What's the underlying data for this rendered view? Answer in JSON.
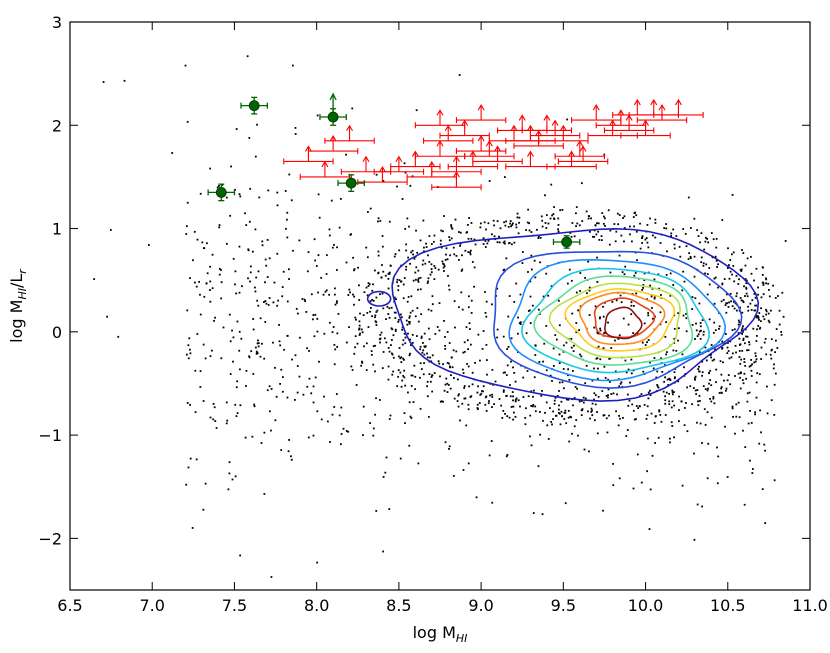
{
  "chart_data": {
    "type": "scatter",
    "xlabel": "log M",
    "xlabel_sub": "HI",
    "ylabel": "log M",
    "ylabel_sub": "HI",
    "ylabel_tail": "/L",
    "ylabel_tail_sub": "r",
    "xlim": [
      6.5,
      11.0
    ],
    "ylim": [
      -2.5,
      3.0
    ],
    "xticks": [
      "6.5",
      "7.0",
      "7.5",
      "8.0",
      "8.5",
      "9.0",
      "9.5",
      "10.0",
      "10.5",
      "11.0"
    ],
    "yticks": [
      "−2",
      "−1",
      "0",
      "1",
      "2",
      "3"
    ],
    "grid": false,
    "colors": {
      "background_points": "#000000",
      "detections": "#006400",
      "lower_limits": "#ff0000",
      "contours": [
        "#1f1fbf",
        "#2a4fe0",
        "#1f8fff",
        "#19c8e6",
        "#5fdc9a",
        "#b8e04a",
        "#ffcc22",
        "#ff8a1e",
        "#e8401a",
        "#8b1010"
      ]
    },
    "series": [
      {
        "kind": "detections_with_errorbars",
        "points": [
          {
            "x": 7.42,
            "y": 1.35,
            "xerr": 0.08,
            "yerr": 0.08
          },
          {
            "x": 7.62,
            "y": 2.19,
            "xerr": 0.08,
            "yerr": 0.08
          },
          {
            "x": 8.1,
            "y": 2.08,
            "xerr": 0.08,
            "yerr": 0.08,
            "upper_arrow": true
          },
          {
            "x": 8.21,
            "y": 1.44,
            "xerr": 0.08,
            "yerr": 0.08
          },
          {
            "x": 9.52,
            "y": 0.87,
            "xerr": 0.08,
            "yerr": 0.06
          }
        ]
      },
      {
        "kind": "lower_limits",
        "points": [
          [
            7.95,
            1.65
          ],
          [
            8.05,
            1.5
          ],
          [
            8.1,
            1.75
          ],
          [
            8.2,
            1.85
          ],
          [
            8.3,
            1.55
          ],
          [
            8.4,
            1.45
          ],
          [
            8.5,
            1.55
          ],
          [
            8.6,
            1.6
          ],
          [
            8.7,
            1.5
          ],
          [
            8.75,
            1.7
          ],
          [
            8.75,
            2.0
          ],
          [
            8.8,
            1.85
          ],
          [
            8.85,
            1.4
          ],
          [
            8.85,
            1.55
          ],
          [
            8.9,
            1.9
          ],
          [
            8.95,
            1.6
          ],
          [
            9.0,
            1.75
          ],
          [
            9.0,
            2.05
          ],
          [
            9.05,
            1.7
          ],
          [
            9.1,
            1.65
          ],
          [
            9.2,
            1.85
          ],
          [
            9.25,
            1.95
          ],
          [
            9.3,
            1.85
          ],
          [
            9.35,
            1.8
          ],
          [
            9.4,
            1.95
          ],
          [
            9.45,
            1.9
          ],
          [
            9.5,
            1.85
          ],
          [
            9.55,
            1.6
          ],
          [
            9.6,
            1.7
          ],
          [
            9.62,
            1.65
          ],
          [
            9.7,
            2.05
          ],
          [
            9.8,
            1.9
          ],
          [
            9.85,
            2.0
          ],
          [
            9.9,
            1.95
          ],
          [
            9.95,
            2.1
          ],
          [
            10.0,
            1.9
          ],
          [
            10.05,
            2.1
          ],
          [
            10.1,
            2.05
          ],
          [
            10.2,
            2.1
          ],
          [
            9.3,
            1.6
          ]
        ]
      }
    ],
    "contour_levels": [
      {
        "cx": 9.62,
        "cy": 0.2,
        "rx": 1.02,
        "ry": 0.82
      },
      {
        "cx": 9.78,
        "cy": 0.15,
        "rx": 0.75,
        "ry": 0.66
      },
      {
        "cx": 9.8,
        "cy": 0.12,
        "rx": 0.64,
        "ry": 0.58
      },
      {
        "cx": 9.82,
        "cy": 0.1,
        "rx": 0.55,
        "ry": 0.5
      },
      {
        "cx": 9.83,
        "cy": 0.1,
        "rx": 0.47,
        "ry": 0.43
      },
      {
        "cx": 9.84,
        "cy": 0.11,
        "rx": 0.39,
        "ry": 0.36
      },
      {
        "cx": 9.85,
        "cy": 0.12,
        "rx": 0.32,
        "ry": 0.3
      },
      {
        "cx": 9.85,
        "cy": 0.13,
        "rx": 0.25,
        "ry": 0.25
      },
      {
        "cx": 9.86,
        "cy": 0.13,
        "rx": 0.18,
        "ry": 0.19
      },
      {
        "cx": 9.86,
        "cy": 0.08,
        "rx": 0.11,
        "ry": 0.15
      }
    ]
  }
}
